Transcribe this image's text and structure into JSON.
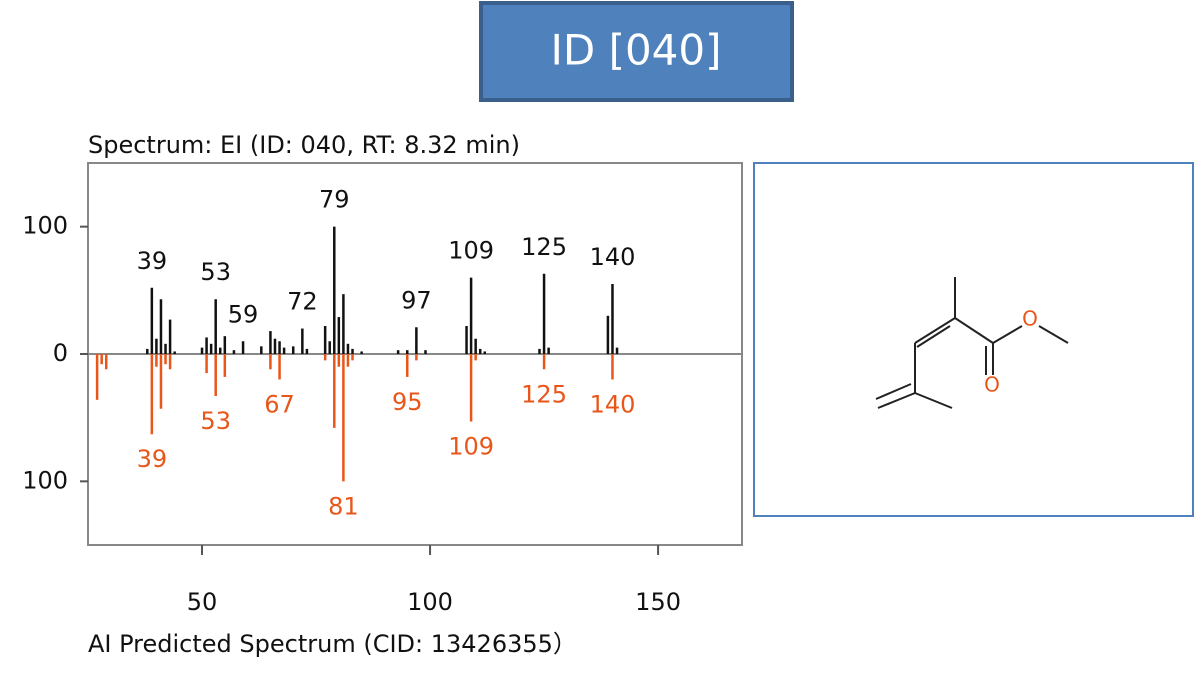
{
  "header": {
    "title": "ID [040]"
  },
  "chart_data": {
    "type": "mirror-spectrum",
    "xlim": [
      25,
      168.4
    ],
    "xticks": [
      50,
      100,
      150
    ],
    "ylim": [
      -150,
      150
    ],
    "yticks": [
      {
        "value": -100,
        "label": "100"
      },
      0,
      100
    ],
    "series": [
      {
        "name": "Spectrum: EI (ID: 040, RT: 8.32 min)",
        "color": "#111111",
        "direction": "up",
        "x": [
          38,
          39,
          40,
          41,
          42,
          43,
          44,
          50,
          51,
          52,
          53,
          54,
          55,
          57,
          59,
          63,
          65,
          66,
          67,
          68,
          70,
          72,
          73,
          77,
          78,
          79,
          80,
          81,
          82,
          83,
          85,
          93,
          95,
          97,
          99,
          108,
          109,
          110,
          111,
          112,
          124,
          125,
          126,
          139,
          140,
          141
        ],
        "values": [
          4,
          52,
          12,
          43,
          8,
          27,
          2,
          5,
          13,
          8,
          43,
          5,
          14,
          3,
          10,
          6,
          18,
          12,
          10,
          5,
          6,
          20,
          4,
          22,
          10,
          100,
          29,
          47,
          8,
          4,
          2,
          3,
          3,
          21,
          3,
          22,
          60,
          12,
          4,
          2,
          4,
          63,
          5,
          30,
          55,
          5
        ],
        "labels": [
          39,
          53,
          59,
          72,
          79,
          97,
          109,
          125,
          140
        ]
      },
      {
        "name": "AI Predicted Spectrum (CID: 13426355）",
        "color": "#e8561a",
        "direction": "down",
        "x": [
          27,
          28,
          29,
          39,
          40,
          41,
          42,
          43,
          51,
          53,
          55,
          65,
          67,
          77,
          79,
          80,
          81,
          82,
          83,
          95,
          97,
          109,
          110,
          125,
          140
        ],
        "values": [
          36,
          8,
          12,
          63,
          10,
          43,
          8,
          12,
          15,
          33,
          18,
          12,
          20,
          5,
          58,
          10,
          100,
          10,
          5,
          18,
          5,
          53,
          5,
          12,
          20
        ],
        "labels": [
          39,
          53,
          67,
          81,
          95,
          109,
          125,
          140
        ]
      }
    ]
  },
  "structure": {
    "atoms": [
      "O",
      "O"
    ]
  }
}
